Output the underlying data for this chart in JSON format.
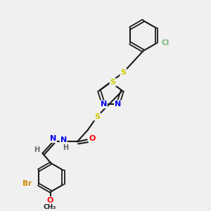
{
  "background_color": "#f0f0f0",
  "bond_color": "#1a1a1a",
  "atom_colors": {
    "S": "#cccc00",
    "N": "#0000ee",
    "O": "#ff0000",
    "Cl": "#77bb77",
    "Br": "#cc8800",
    "C": "#1a1a1a",
    "H": "#666666"
  },
  "figsize": [
    3.0,
    3.0
  ],
  "dpi": 100
}
